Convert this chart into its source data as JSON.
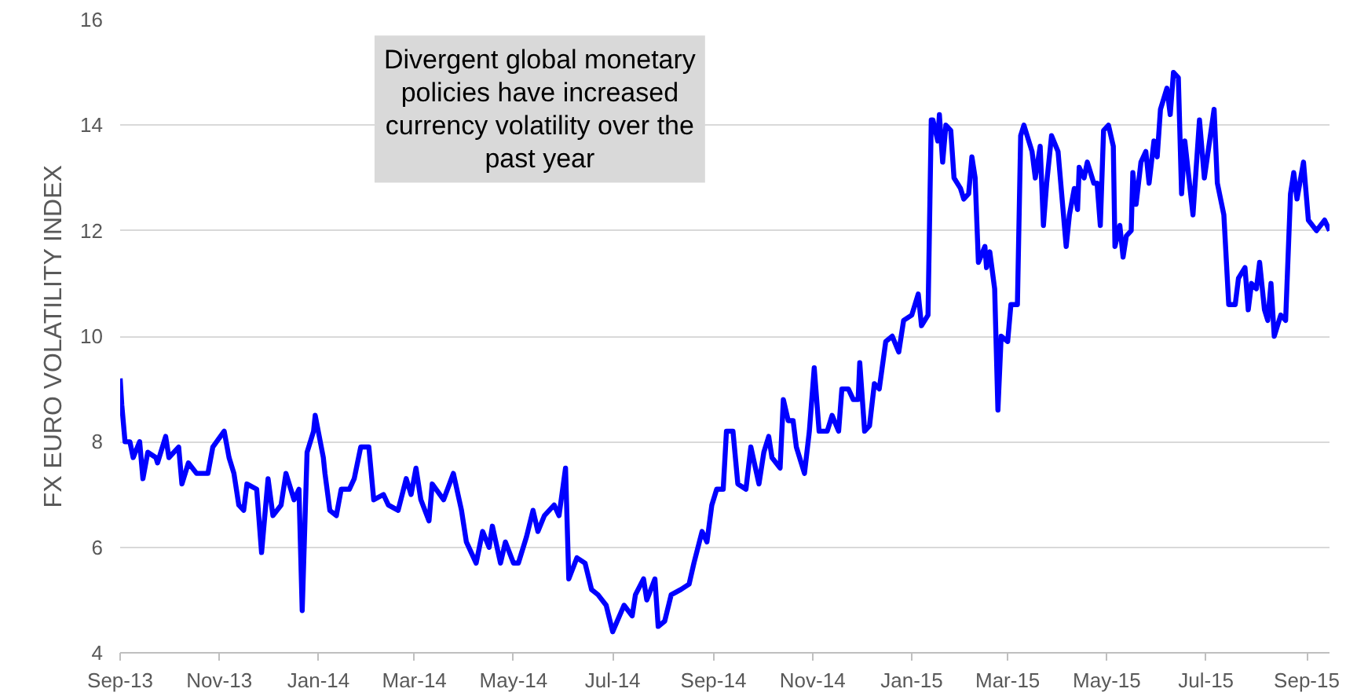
{
  "chart_data": {
    "type": "line",
    "ylabel": "FX EURO VOLATILITY INDEX",
    "annotations": [
      "Divergent global monetary\npolicies have increased\ncurrency volatility over the\npast year"
    ],
    "xlim": [
      "2013-09-01",
      "2015-09-15"
    ],
    "ylim": [
      4,
      16
    ],
    "yticks": [
      4,
      6,
      8,
      10,
      12,
      14,
      16
    ],
    "xticks": [
      {
        "value": "2013-09-01",
        "label": "Sep-13"
      },
      {
        "value": "2013-11-01",
        "label": "Nov-13"
      },
      {
        "value": "2014-01-01",
        "label": "Jan-14"
      },
      {
        "value": "2014-03-01",
        "label": "Mar-14"
      },
      {
        "value": "2014-05-01",
        "label": "May-14"
      },
      {
        "value": "2014-07-01",
        "label": "Jul-14"
      },
      {
        "value": "2014-09-01",
        "label": "Sep-14"
      },
      {
        "value": "2014-11-01",
        "label": "Nov-14"
      },
      {
        "value": "2015-01-01",
        "label": "Jan-15"
      },
      {
        "value": "2015-03-01",
        "label": "Mar-15"
      },
      {
        "value": "2015-05-01",
        "label": "May-15"
      },
      {
        "value": "2015-07-01",
        "label": "Jul-15"
      },
      {
        "value": "2015-09-01",
        "label": "Sep-15"
      }
    ],
    "grid": "y",
    "series": [
      {
        "color": "#0000ff",
        "x": [
          "2013-09-01",
          "2013-09-02",
          "2013-09-04",
          "2013-09-07",
          "2013-09-09",
          "2013-09-13",
          "2013-09-15",
          "2013-09-18",
          "2013-09-23",
          "2013-09-24",
          "2013-09-29",
          "2013-10-01",
          "2013-10-07",
          "2013-10-09",
          "2013-10-13",
          "2013-10-18",
          "2013-10-25",
          "2013-10-28",
          "2013-11-04",
          "2013-11-07",
          "2013-11-10",
          "2013-11-13",
          "2013-11-16",
          "2013-11-18",
          "2013-11-24",
          "2013-11-27",
          "2013-12-01",
          "2013-12-04",
          "2013-12-09",
          "2013-12-12",
          "2013-12-17",
          "2013-12-20",
          "2013-12-22",
          "2013-12-25",
          "2013-12-29",
          "2013-12-30",
          "2014-01-04",
          "2014-01-05",
          "2014-01-08",
          "2014-01-12",
          "2014-01-15",
          "2014-01-20",
          "2014-01-23",
          "2014-01-27",
          "2014-02-01",
          "2014-02-04",
          "2014-02-10",
          "2014-02-13",
          "2014-02-19",
          "2014-02-24",
          "2014-02-27",
          "2014-03-02",
          "2014-03-05",
          "2014-03-10",
          "2014-03-12",
          "2014-03-19",
          "2014-03-25",
          "2014-03-30",
          "2014-04-02",
          "2014-04-08",
          "2014-04-12",
          "2014-04-16",
          "2014-04-18",
          "2014-04-23",
          "2014-04-26",
          "2014-05-01",
          "2014-05-04",
          "2014-05-09",
          "2014-05-13",
          "2014-05-16",
          "2014-05-20",
          "2014-05-26",
          "2014-05-29",
          "2014-06-02",
          "2014-06-04",
          "2014-06-09",
          "2014-06-14",
          "2014-06-18",
          "2014-06-22",
          "2014-06-27",
          "2014-07-01",
          "2014-07-08",
          "2014-07-13",
          "2014-07-15",
          "2014-07-20",
          "2014-07-22",
          "2014-07-27",
          "2014-07-29",
          "2014-08-02",
          "2014-08-06",
          "2014-08-12",
          "2014-08-17",
          "2014-08-20",
          "2014-08-25",
          "2014-08-28",
          "2014-08-31",
          "2014-09-03",
          "2014-09-07",
          "2014-09-09",
          "2014-09-13",
          "2014-09-16",
          "2014-09-21",
          "2014-09-24",
          "2014-09-29",
          "2014-10-02",
          "2014-10-05",
          "2014-10-07",
          "2014-10-12",
          "2014-10-14",
          "2014-10-17",
          "2014-10-20",
          "2014-10-22",
          "2014-10-27",
          "2014-10-30",
          "2014-11-02",
          "2014-11-05",
          "2014-11-10",
          "2014-11-13",
          "2014-11-17",
          "2014-11-19",
          "2014-11-23",
          "2014-11-26",
          "2014-11-29",
          "2014-11-30",
          "2014-12-03",
          "2014-12-06",
          "2014-12-09",
          "2014-12-12",
          "2014-12-16",
          "2014-12-20",
          "2014-12-24",
          "2014-12-27",
          "2015-01-01",
          "2015-01-05",
          "2015-01-07",
          "2015-01-11",
          "2015-01-13",
          "2015-01-14",
          "2015-01-17",
          "2015-01-18",
          "2015-01-20",
          "2015-01-22",
          "2015-01-25",
          "2015-01-27",
          "2015-01-31",
          "2015-02-02",
          "2015-02-05",
          "2015-02-07",
          "2015-02-09",
          "2015-02-11",
          "2015-02-15",
          "2015-02-16",
          "2015-02-18",
          "2015-02-21",
          "2015-02-23",
          "2015-02-25",
          "2015-03-01",
          "2015-03-03",
          "2015-03-07",
          "2015-03-09",
          "2015-03-11",
          "2015-03-16",
          "2015-03-18",
          "2015-03-21",
          "2015-03-23",
          "2015-03-25",
          "2015-03-28",
          "2015-04-01",
          "2015-04-06",
          "2015-04-08",
          "2015-04-11",
          "2015-04-13",
          "2015-04-14",
          "2015-04-17",
          "2015-04-19",
          "2015-04-23",
          "2015-04-25",
          "2015-04-27",
          "2015-04-29",
          "2015-05-02",
          "2015-05-05",
          "2015-05-06",
          "2015-05-09",
          "2015-05-11",
          "2015-05-13",
          "2015-05-16",
          "2015-05-17",
          "2015-05-19",
          "2015-05-22",
          "2015-05-25",
          "2015-05-27",
          "2015-05-30",
          "2015-06-01",
          "2015-06-03",
          "2015-06-06",
          "2015-06-07",
          "2015-06-09",
          "2015-06-11",
          "2015-06-14",
          "2015-06-16",
          "2015-06-18",
          "2015-06-23",
          "2015-06-27",
          "2015-06-30",
          "2015-07-06",
          "2015-07-08",
          "2015-07-12",
          "2015-07-15",
          "2015-07-19",
          "2015-07-21",
          "2015-07-25",
          "2015-07-27",
          "2015-07-29",
          "2015-08-01",
          "2015-08-03",
          "2015-08-06",
          "2015-08-08",
          "2015-08-10",
          "2015-08-12",
          "2015-08-16",
          "2015-08-19",
          "2015-08-22",
          "2015-08-24",
          "2015-08-26",
          "2015-08-30",
          "2015-09-02",
          "2015-09-07",
          "2015-09-12",
          "2015-09-15"
        ],
        "values": [
          9.2,
          8.7,
          8.0,
          8.0,
          7.7,
          8.0,
          7.3,
          7.8,
          7.7,
          7.6,
          8.1,
          7.7,
          7.9,
          7.2,
          7.6,
          7.4,
          7.4,
          7.9,
          8.2,
          7.7,
          7.4,
          6.8,
          6.7,
          7.2,
          7.1,
          5.9,
          7.3,
          6.6,
          6.8,
          7.4,
          6.9,
          7.1,
          4.8,
          7.8,
          8.2,
          8.5,
          7.7,
          7.4,
          6.7,
          6.6,
          7.1,
          7.1,
          7.3,
          7.9,
          7.9,
          6.9,
          7.0,
          6.8,
          6.7,
          7.3,
          7.0,
          7.5,
          6.9,
          6.5,
          7.2,
          6.9,
          7.4,
          6.7,
          6.1,
          5.7,
          6.3,
          6.0,
          6.4,
          5.7,
          6.1,
          5.7,
          5.7,
          6.2,
          6.7,
          6.3,
          6.6,
          6.8,
          6.6,
          7.5,
          5.4,
          5.8,
          5.7,
          5.2,
          5.1,
          4.9,
          4.4,
          4.9,
          4.7,
          5.1,
          5.4,
          5.0,
          5.4,
          4.5,
          4.6,
          5.1,
          5.2,
          5.3,
          5.7,
          6.3,
          6.1,
          6.8,
          7.1,
          7.1,
          8.2,
          8.2,
          7.2,
          7.1,
          7.9,
          7.2,
          7.8,
          8.1,
          7.7,
          7.5,
          8.8,
          8.4,
          8.4,
          7.9,
          7.4,
          8.2,
          9.4,
          8.2,
          8.2,
          8.5,
          8.2,
          9.0,
          9.0,
          8.8,
          8.8,
          9.5,
          8.2,
          8.3,
          9.1,
          9.0,
          9.9,
          10.0,
          9.7,
          10.3,
          10.4,
          10.8,
          10.2,
          10.4,
          14.1,
          14.1,
          13.7,
          14.2,
          13.3,
          14.0,
          13.9,
          13.0,
          12.8,
          12.6,
          12.7,
          13.4,
          13.0,
          11.4,
          11.7,
          11.3,
          11.6,
          10.9,
          8.6,
          10.0,
          9.9,
          10.6,
          10.6,
          13.8,
          14.0,
          13.5,
          13.0,
          13.6,
          12.1,
          12.9,
          13.8,
          13.5,
          11.7,
          12.3,
          12.8,
          12.4,
          13.2,
          13.0,
          13.3,
          12.9,
          12.9,
          12.1,
          13.9,
          14.0,
          13.6,
          11.7,
          12.1,
          11.5,
          11.9,
          12.0,
          13.1,
          12.5,
          13.3,
          13.5,
          12.9,
          13.7,
          13.4,
          14.3,
          14.6,
          14.7,
          14.2,
          15.0,
          14.9,
          12.7,
          13.7,
          12.3,
          14.1,
          13.0,
          14.3,
          12.9,
          12.3,
          10.6,
          10.6,
          11.1,
          11.3,
          10.5,
          11.0,
          10.9,
          11.4,
          10.5,
          10.3,
          11.0,
          10.0,
          10.4,
          10.3,
          12.7,
          13.1,
          12.6,
          13.3,
          12.2,
          12.0,
          12.2,
          12.0
        ]
      }
    ]
  }
}
